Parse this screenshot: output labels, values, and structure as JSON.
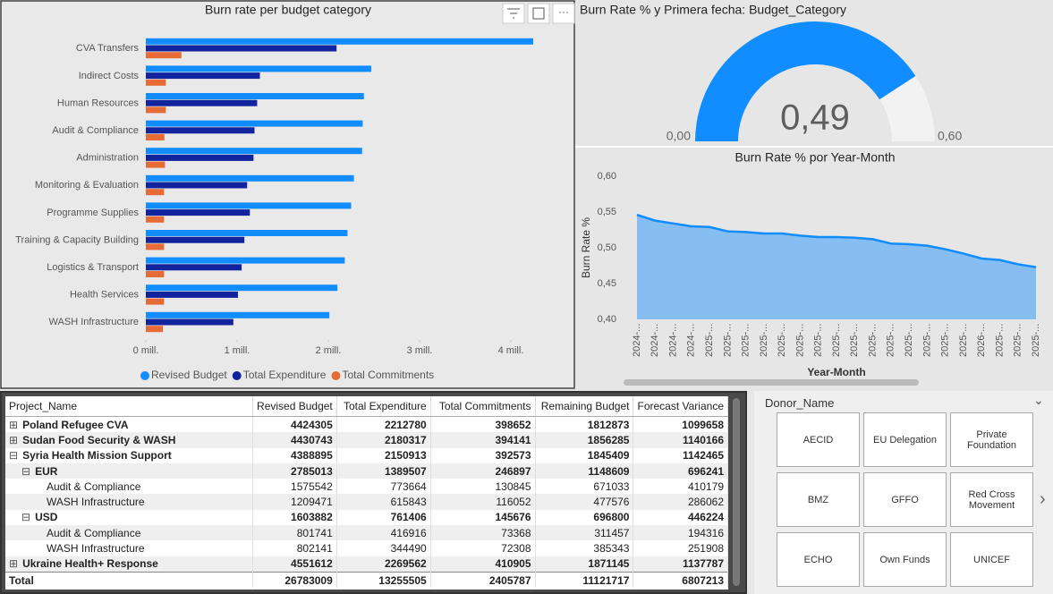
{
  "chart_data": [
    {
      "type": "bar",
      "title": "Burn rate per budget category",
      "categories": [
        "CVA Transfers",
        "Indirect Costs",
        "Human Resources",
        "Audit & Compliance",
        "Administration",
        "Monitoring & Evaluation",
        "Programme Supplies",
        "Training & Capacity Building",
        "Logistics & Transport",
        "Health Services",
        "WASH Infrastructure"
      ],
      "series": [
        {
          "name": "Revised Budget",
          "color": "#118dff",
          "values": [
            4245000,
            2470000,
            2390000,
            2377000,
            2370000,
            2280000,
            2250000,
            2210000,
            2180000,
            2100000,
            2011000
          ]
        },
        {
          "name": "Total Expenditure",
          "color": "#12239e",
          "values": [
            2090000,
            1250000,
            1220000,
            1191000,
            1180000,
            1110000,
            1140000,
            1080000,
            1050000,
            1010000,
            959000
          ]
        },
        {
          "name": "Total Commitments",
          "color": "#e66c37",
          "values": [
            390000,
            220000,
            220000,
            204000,
            210000,
            200000,
            200000,
            200000,
            200000,
            200000,
            188000
          ]
        }
      ],
      "xlim": [
        0,
        4300000
      ],
      "xticks": [
        {
          "value": 0,
          "label": "0 mill."
        },
        {
          "value": 1000000,
          "label": "1 mill."
        },
        {
          "value": 2000000,
          "label": "2 mill."
        },
        {
          "value": 3000000,
          "label": "3 mill."
        },
        {
          "value": 4000000,
          "label": "4 mill."
        }
      ]
    },
    {
      "type": "gauge",
      "title": "Burn Rate % y Primera fecha: Budget_Category",
      "values": [
        0.49
      ],
      "value_labels": [
        "0,49"
      ],
      "color": "#118dff",
      "ylim": [
        0,
        0.6
      ],
      "yticks": [
        {
          "value": 0,
          "label": "0,00"
        },
        {
          "value": 0.6,
          "label": "0,60"
        }
      ]
    },
    {
      "type": "area",
      "title": "Burn Rate % por Year-Month",
      "x_label": "Year-Month",
      "y_label": "Burn Rate %",
      "color": "#118dff",
      "categories": [
        "2024-...",
        "2024-...",
        "2024-...",
        "2024-...",
        "2025-...",
        "2025-...",
        "2025-...",
        "2025-...",
        "2025-...",
        "2025-...",
        "2025-...",
        "2025-...",
        "2025-...",
        "2025-...",
        "2025-...",
        "2025-...",
        "2025-...",
        "2025-...",
        "2025-...",
        "2026-...",
        "2025-...",
        "2025-...",
        "2025-..."
      ],
      "values": [
        0.546,
        0.538,
        0.534,
        0.53,
        0.529,
        0.523,
        0.522,
        0.52,
        0.52,
        0.517,
        0.515,
        0.515,
        0.514,
        0.512,
        0.506,
        0.505,
        0.503,
        0.498,
        0.492,
        0.485,
        0.483,
        0.477,
        0.473
      ],
      "ylim": [
        0.4,
        0.6
      ],
      "yticks": [
        {
          "value": 0.4,
          "label": "0,40"
        },
        {
          "value": 0.45,
          "label": "0,45"
        },
        {
          "value": 0.5,
          "label": "0,50"
        },
        {
          "value": 0.55,
          "label": "0,55"
        },
        {
          "value": 0.6,
          "label": "0,60"
        }
      ]
    }
  ],
  "table": {
    "columns": [
      "Project_Name",
      "Revised Budget",
      "Total Expenditure",
      "Total Commitments",
      "Remaining Budget",
      "Forecast Variance"
    ],
    "rows": [
      [
        "Poland Refugee CVA",
        4424305,
        2212780,
        398652,
        1812873,
        1099658
      ],
      [
        "Sudan Food Security & WASH",
        4430743,
        2180317,
        394141,
        1856285,
        1140166
      ],
      [
        "Syria Health Mission Support",
        4388895,
        2150913,
        392573,
        1845409,
        1142465
      ],
      [
        "EUR",
        2785013,
        1389507,
        246897,
        1148609,
        696241
      ],
      [
        "Audit & Compliance",
        1575542,
        773664,
        130845,
        671033,
        410179
      ],
      [
        "WASH Infrastructure",
        1209471,
        615843,
        116052,
        477576,
        286062
      ],
      [
        "USD",
        1603882,
        761406,
        145676,
        696800,
        446224
      ],
      [
        "Audit & Compliance",
        801741,
        416916,
        73368,
        311457,
        194316
      ],
      [
        "WASH Infrastructure",
        802141,
        344490,
        72308,
        385343,
        251908
      ],
      [
        "Ukraine Health+ Response",
        4551612,
        2269562,
        410905,
        1871145,
        1137787
      ]
    ],
    "total": [
      "Total",
      26783009,
      13255505,
      2405787,
      11121717,
      6807213
    ]
  },
  "slicer": {
    "title": "Donor_Name",
    "items": [
      "AECID",
      "EU Delegation",
      "Private Foundation",
      "BMZ",
      "GFFO",
      "Red Cross Movement",
      "ECHO",
      "Own Funds",
      "UNICEF"
    ]
  }
}
